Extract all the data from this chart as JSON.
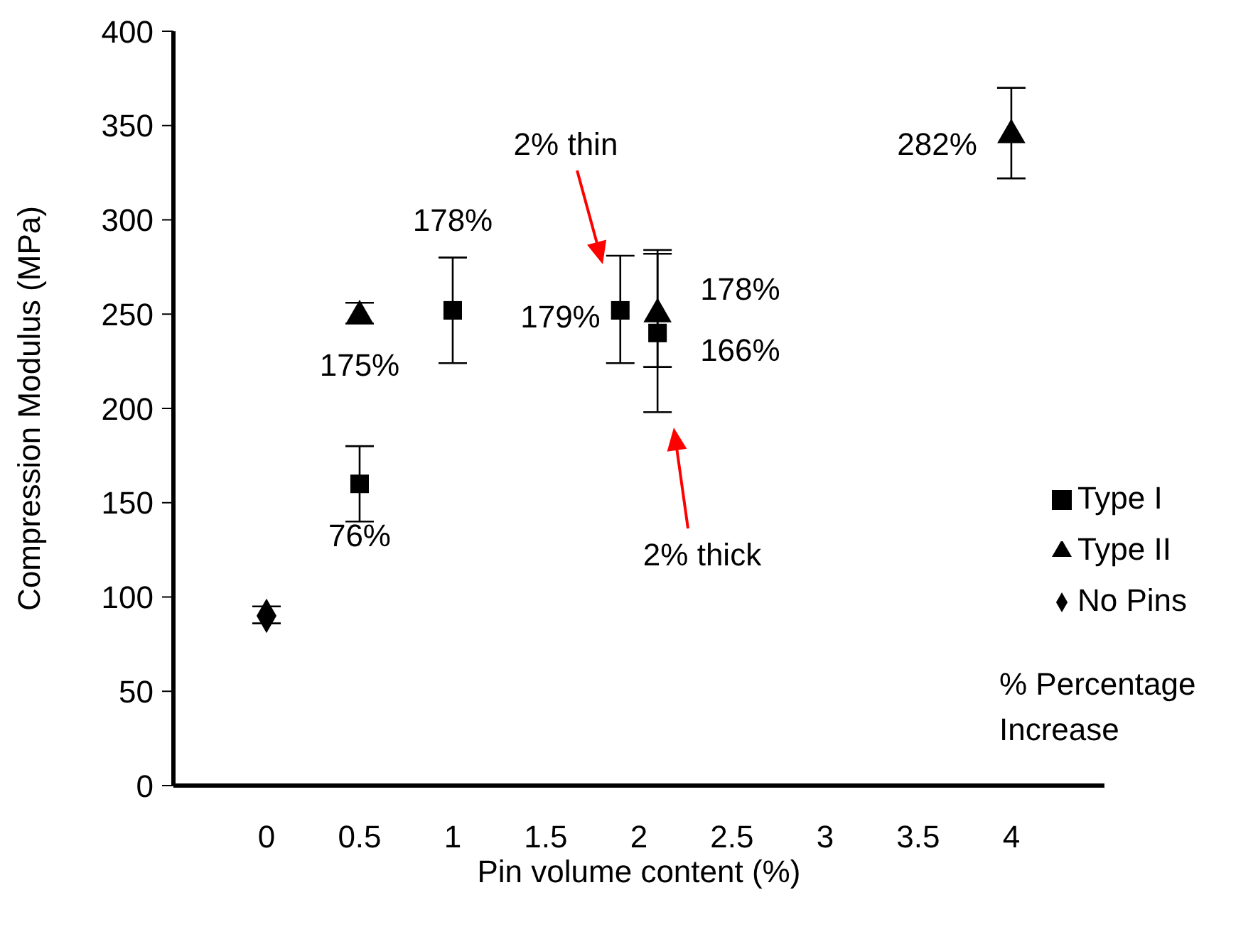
{
  "chart_data": {
    "type": "scatter",
    "xlabel": "Pin volume content (%)",
    "ylabel": "Compression Modulus (MPa)",
    "xlim": [
      -0.5,
      4.5
    ],
    "xticks": [
      0,
      0.5,
      1,
      1.5,
      2,
      2.5,
      3,
      3.5,
      4
    ],
    "ylim": [
      0,
      400
    ],
    "yticks": [
      0,
      50,
      100,
      150,
      200,
      250,
      300,
      350,
      400
    ],
    "grid": false,
    "legend": "right",
    "series": [
      {
        "name": "Type I",
        "color": "#000000",
        "marker": "square",
        "x": [
          0.5,
          1,
          1.9,
          2.1
        ],
        "values": [
          160,
          252,
          252,
          240
        ],
        "errors": [
          [
            140,
            180
          ],
          [
            224,
            280
          ],
          [
            224,
            281
          ],
          [
            198,
            284
          ]
        ]
      },
      {
        "name": "Type II",
        "color": "#000000",
        "marker": "triangle",
        "x": [
          0.5,
          2.1,
          4
        ],
        "values": [
          249,
          250,
          345
        ],
        "errors": [
          [
            245,
            256
          ],
          [
            222,
            282
          ],
          [
            322,
            370
          ]
        ]
      },
      {
        "name": "No Pins",
        "color": "#000000",
        "marker": "diamond",
        "x": [
          0
        ],
        "values": [
          90
        ],
        "errors": [
          [
            86,
            95
          ]
        ]
      }
    ],
    "annotations": [
      {
        "text": "76%",
        "x": 0.5,
        "y": 160
      },
      {
        "text": "175%",
        "x": 0.5,
        "y": 249
      },
      {
        "text": "178%",
        "x": 1,
        "y": 252
      },
      {
        "text": "179%",
        "x": 1.9,
        "y": 252
      },
      {
        "text": "178%",
        "x": 2.1,
        "y": 250
      },
      {
        "text": "166%",
        "x": 2.1,
        "y": 240
      },
      {
        "text": "282%",
        "x": 4,
        "y": 345
      },
      "2% thin",
      "2% thick",
      "% Percentage Increase"
    ]
  }
}
